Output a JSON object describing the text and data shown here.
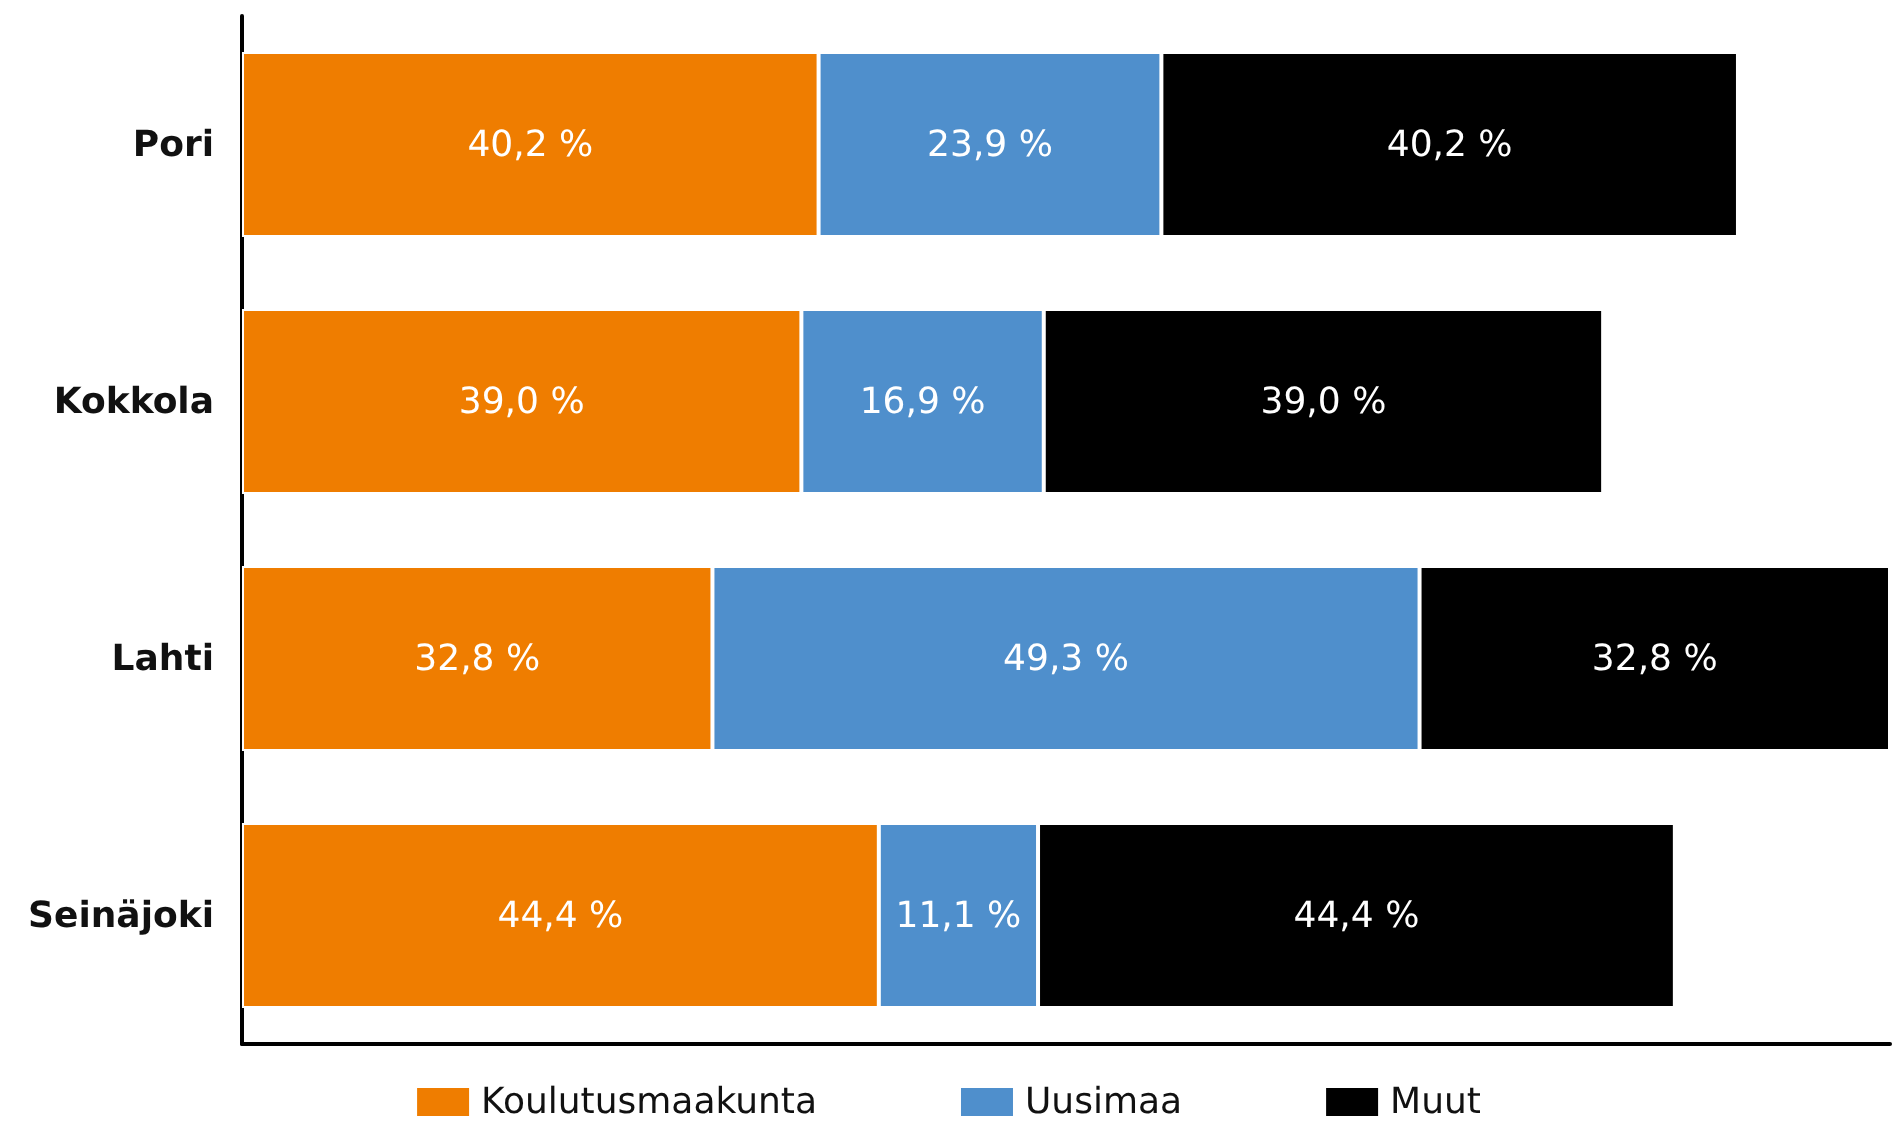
{
  "chart_data": {
    "type": "bar",
    "orientation": "horizontal",
    "stacked": true,
    "legend": "bottom",
    "grid": false,
    "categories": [
      "Pori",
      "Kokkola",
      "Lahti",
      "Seinäjoki"
    ],
    "series": [
      {
        "name": "Koulutusmaakunta",
        "color": "#ef7d00",
        "values": [
          40.2,
          39.0,
          32.8,
          44.4
        ],
        "value_labels": [
          "40,2 %",
          "39,0 %",
          "32,8 %",
          "44,4 %"
        ]
      },
      {
        "name": "Uusimaa",
        "color": "#4f8fcc",
        "values": [
          23.9,
          16.9,
          49.3,
          11.1
        ],
        "value_labels": [
          "23,9 %",
          "16,9 %",
          "49,3 %",
          "11,1 %"
        ]
      },
      {
        "name": "Muut",
        "color": "#000000",
        "values": [
          40.2,
          39.0,
          32.8,
          44.4
        ],
        "value_labels": [
          "40,2 %",
          "39,0 %",
          "32,8 %",
          "44,4 %"
        ]
      }
    ]
  }
}
